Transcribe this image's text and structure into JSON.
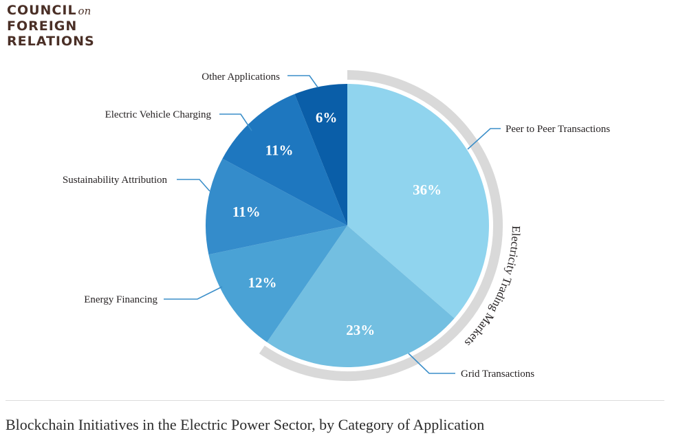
{
  "brand": {
    "line1": "COUNCIL",
    "on": "on",
    "line2": "FOREIGN",
    "line3": "RELATIONS"
  },
  "footer": {
    "title": "Blockchain Initiatives in the Electric Power Sector, by Category of Application"
  },
  "chart_data": {
    "type": "pie",
    "bracket_label": "Electricity Trading Markets",
    "slices": [
      {
        "label": "Peer to Peer Transactions",
        "value": 36,
        "value_label": "36%",
        "color": "#90d4ee"
      },
      {
        "label": "Grid Transactions",
        "value": 23,
        "value_label": "23%",
        "color": "#73bfe1"
      },
      {
        "label": "Energy Financing",
        "value": 12,
        "value_label": "12%",
        "color": "#4aa2d5"
      },
      {
        "label": "Sustainability Attribution",
        "value": 11,
        "value_label": "11%",
        "color": "#348ccb"
      },
      {
        "label": "Electric Vehicle Charging",
        "value": 11,
        "value_label": "11%",
        "color": "#1e77bf"
      },
      {
        "label": "Other Applications",
        "value": 6,
        "value_label": "6%",
        "color": "#0a5ea8"
      }
    ],
    "bracket_covers": [
      "Peer to Peer Transactions",
      "Grid Transactions"
    ],
    "leader_color": "#3a8ec9"
  }
}
